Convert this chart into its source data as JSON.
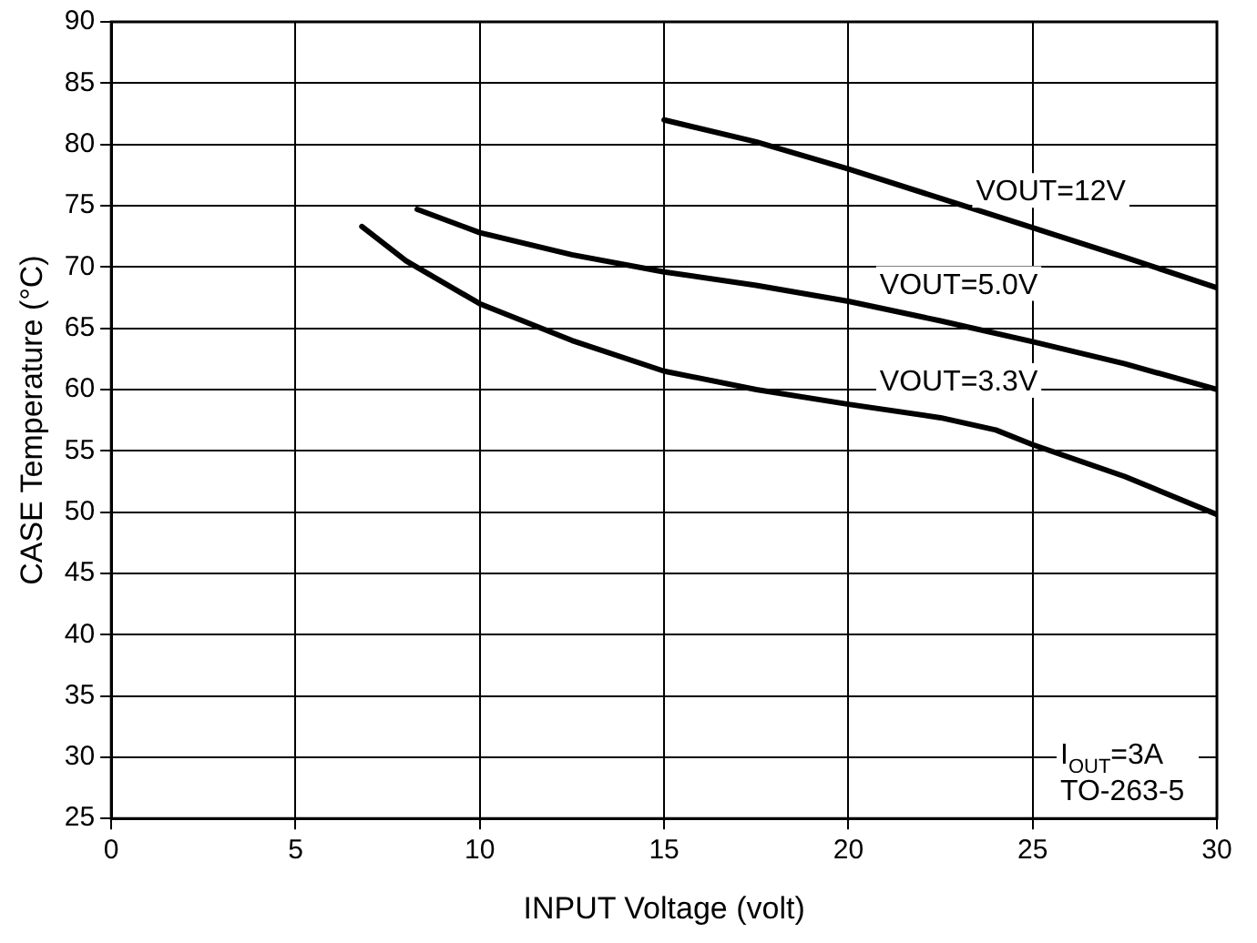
{
  "chart_data": {
    "type": "line",
    "xlabel": "INPUT Voltage (volt)",
    "ylabel": "CASE Temperature (°C)",
    "xlim": [
      0,
      30
    ],
    "xticks": [
      0,
      5,
      10,
      15,
      20,
      25,
      30
    ],
    "ylim": [
      25,
      90
    ],
    "yticks": [
      25,
      30,
      35,
      40,
      45,
      50,
      55,
      60,
      65,
      70,
      75,
      80,
      85,
      90
    ],
    "grid": true,
    "legend": false,
    "marker": "none",
    "line_style": "solid",
    "series": [
      {
        "name": "VOUT=12V",
        "color": "#000000",
        "x": [
          15,
          17.5,
          20,
          22.5,
          25,
          27.5,
          30
        ],
        "values": [
          82,
          80.2,
          78,
          75.6,
          73.2,
          70.8,
          68.3
        ]
      },
      {
        "name": "VOUT=5.0V",
        "color": "#000000",
        "x": [
          8.3,
          10,
          12.5,
          15,
          17.5,
          20,
          22.5,
          25,
          27.5,
          30
        ],
        "values": [
          74.7,
          72.8,
          71,
          69.6,
          68.5,
          67.2,
          65.6,
          63.9,
          62.1,
          60
        ]
      },
      {
        "name": "VOUT=3.3V",
        "color": "#000000",
        "x": [
          6.8,
          8,
          10,
          12.5,
          15,
          17.5,
          20,
          22.5,
          24,
          25,
          27.5,
          30
        ],
        "values": [
          73.3,
          70.5,
          67,
          64,
          61.5,
          60,
          58.8,
          57.7,
          56.7,
          55.5,
          52.9,
          49.8
        ]
      }
    ],
    "annotations": [
      "I$_{OUT}$=3A",
      "TO-263-5"
    ]
  }
}
